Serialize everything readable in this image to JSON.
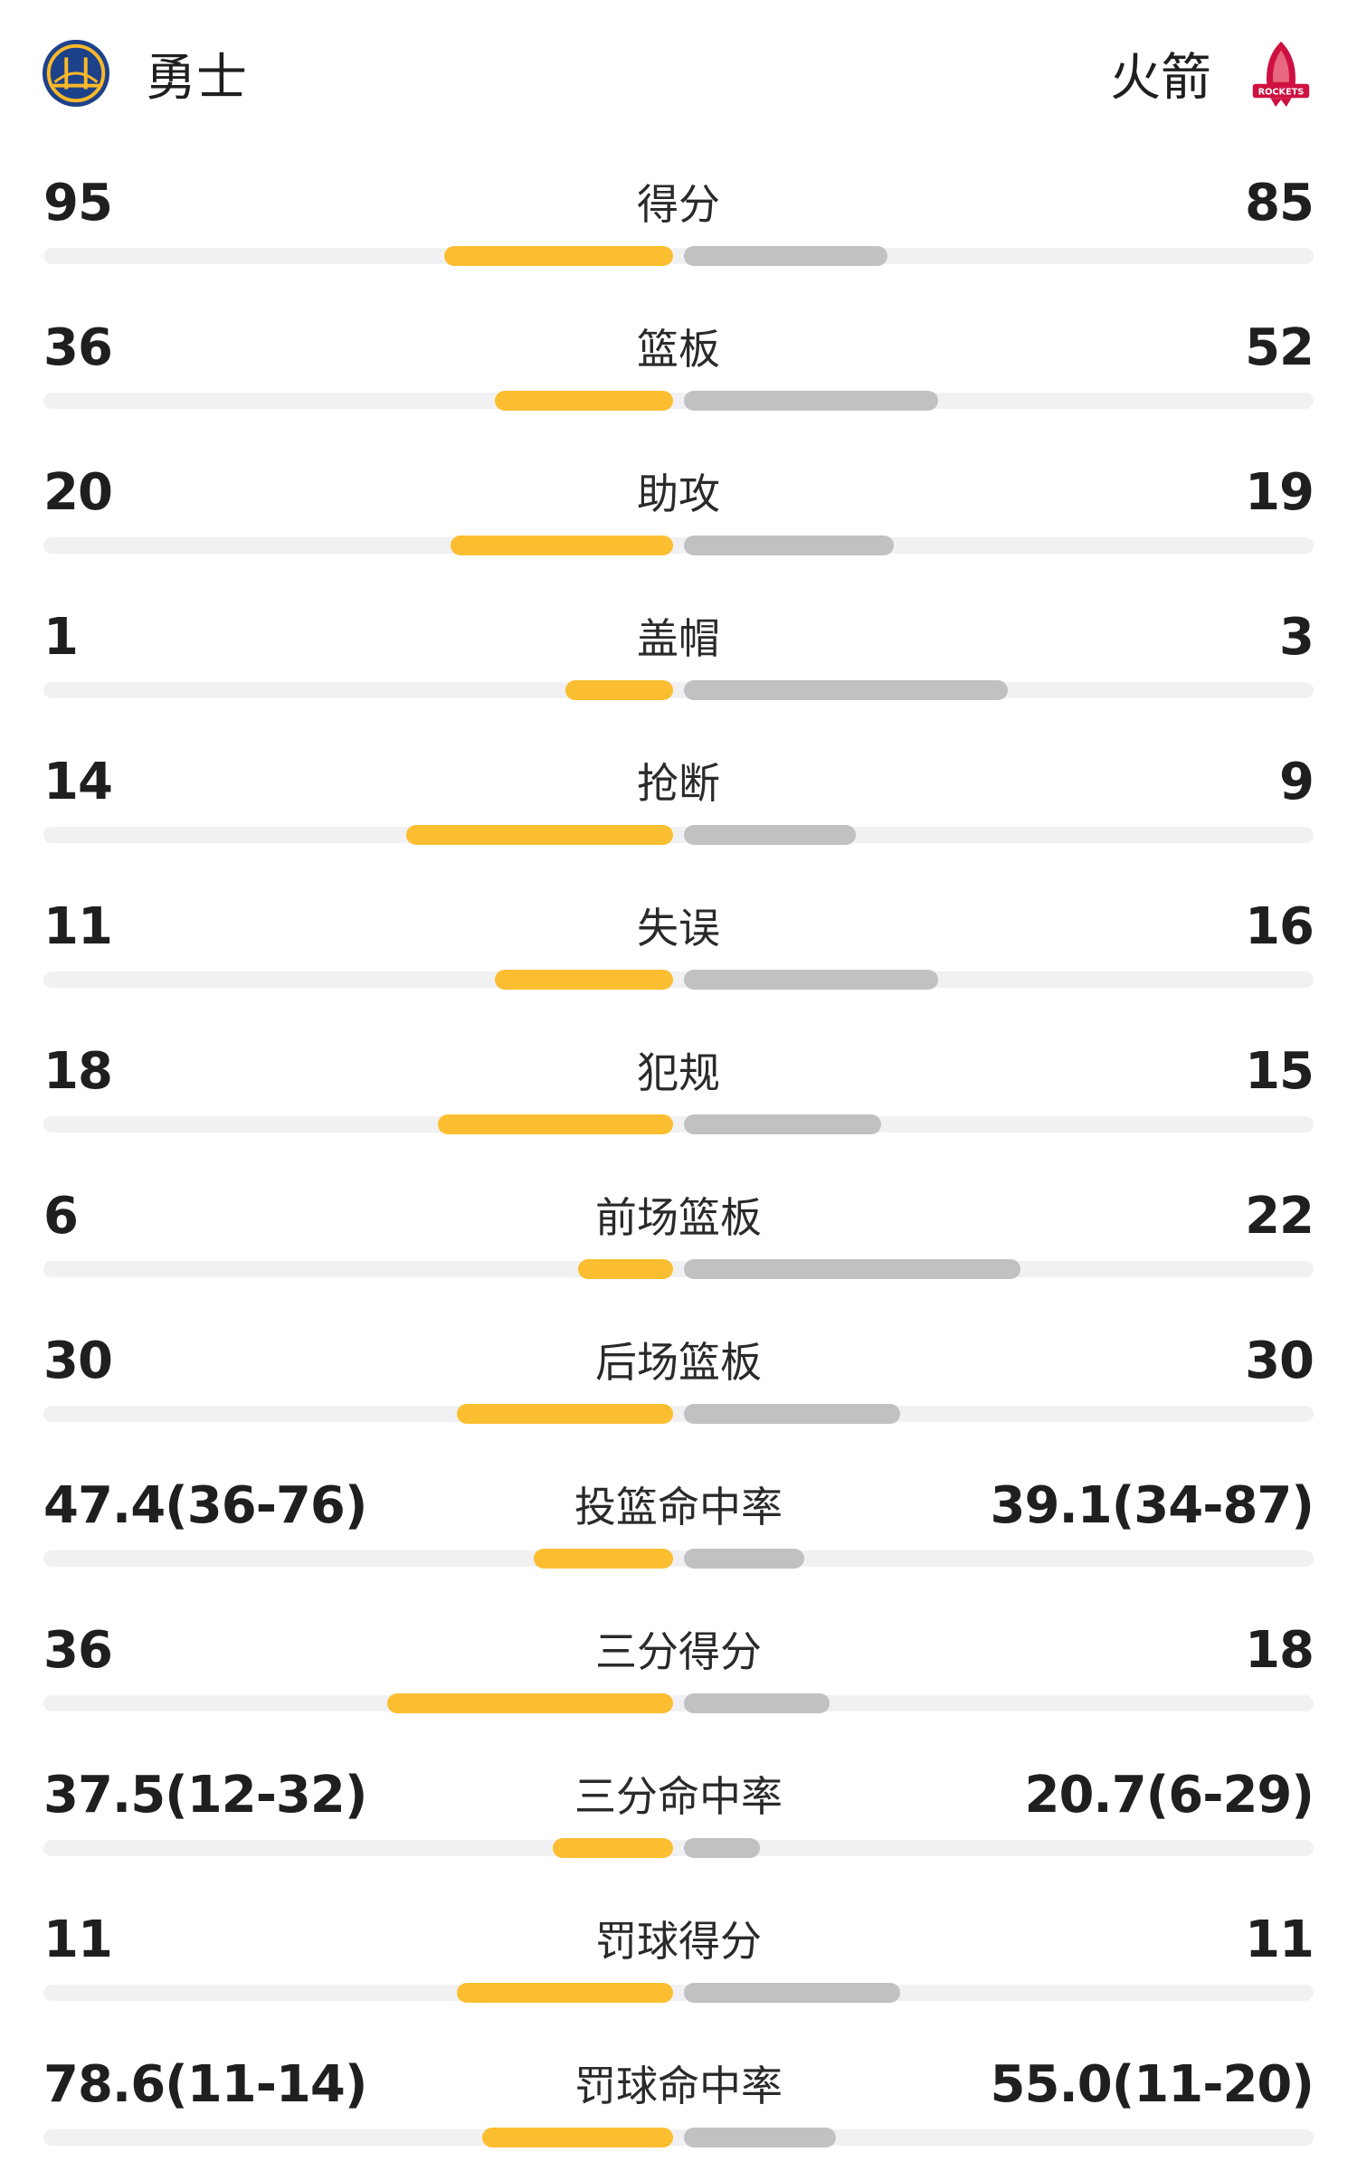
{
  "header": {
    "home_team": "勇士",
    "away_team": "火箭",
    "home_logo_icon": "warriors-bridge-logo",
    "away_logo_icon": "rockets-logo",
    "away_logo_text": "ROCKETS"
  },
  "colors": {
    "home_bar": "#fbbe31",
    "away_bar": "#c1c1c3",
    "track": "#f1f1f3"
  },
  "stats": [
    {
      "label": "得分",
      "home": "95",
      "away": "85",
      "home_share": 0.36,
      "away_share": 0.32
    },
    {
      "label": "篮板",
      "home": "36",
      "away": "52",
      "home_share": 0.28,
      "away_share": 0.4
    },
    {
      "label": "助攻",
      "home": "20",
      "away": "19",
      "home_share": 0.35,
      "away_share": 0.33
    },
    {
      "label": "盖帽",
      "home": "1",
      "away": "3",
      "home_share": 0.17,
      "away_share": 0.51
    },
    {
      "label": "抢断",
      "home": "14",
      "away": "9",
      "home_share": 0.42,
      "away_share": 0.27
    },
    {
      "label": "失误",
      "home": "11",
      "away": "16",
      "home_share": 0.28,
      "away_share": 0.4
    },
    {
      "label": "犯规",
      "home": "18",
      "away": "15",
      "home_share": 0.37,
      "away_share": 0.31
    },
    {
      "label": "前场篮板",
      "home": "6",
      "away": "22",
      "home_share": 0.15,
      "away_share": 0.53
    },
    {
      "label": "后场篮板",
      "home": "30",
      "away": "30",
      "home_share": 0.34,
      "away_share": 0.34
    },
    {
      "label": "投篮命中率",
      "home": "47.4(36-76)",
      "away": "39.1(34-87)",
      "home_share": 0.22,
      "away_share": 0.19
    },
    {
      "label": "三分得分",
      "home": "36",
      "away": "18",
      "home_share": 0.45,
      "away_share": 0.23
    },
    {
      "label": "三分命中率",
      "home": "37.5(12-32)",
      "away": "20.7(6-29)",
      "home_share": 0.19,
      "away_share": 0.12
    },
    {
      "label": "罚球得分",
      "home": "11",
      "away": "11",
      "home_share": 0.34,
      "away_share": 0.34
    },
    {
      "label": "罚球命中率",
      "home": "78.6(11-14)",
      "away": "55.0(11-20)",
      "home_share": 0.3,
      "away_share": 0.24
    }
  ]
}
